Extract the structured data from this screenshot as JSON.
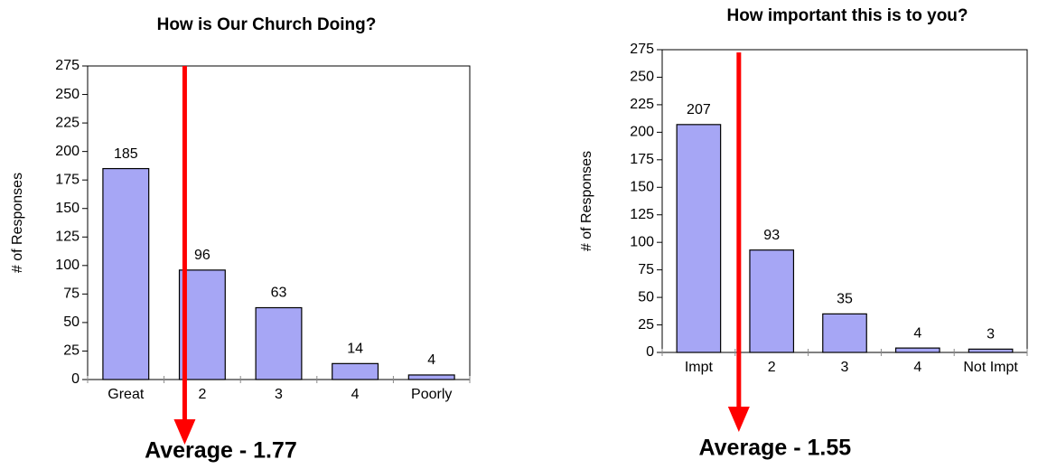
{
  "chart_data": [
    {
      "type": "bar",
      "title": "How is Our Church Doing?",
      "ylabel": "# of Responses",
      "categories": [
        "Great",
        "2",
        "3",
        "4",
        "Poorly"
      ],
      "values": [
        185,
        96,
        63,
        14,
        4
      ],
      "color": "#a6a6f5",
      "ylim": [
        0,
        275
      ],
      "yticks": [
        0,
        25,
        50,
        75,
        100,
        125,
        150,
        175,
        200,
        225,
        250,
        275
      ],
      "average": {
        "value": 1.77,
        "label": "Average - 1.77"
      }
    },
    {
      "type": "bar",
      "title": "How important this is to you?",
      "ylabel": "# of Responses",
      "categories": [
        "Impt",
        "2",
        "3",
        "4",
        "Not Impt"
      ],
      "values": [
        207,
        93,
        35,
        4,
        3
      ],
      "color": "#a6a6f5",
      "ylim": [
        0,
        275
      ],
      "yticks": [
        0,
        25,
        50,
        75,
        100,
        125,
        150,
        175,
        200,
        225,
        250,
        275
      ],
      "average": {
        "value": 1.55,
        "label": "Average - 1.55"
      }
    }
  ]
}
